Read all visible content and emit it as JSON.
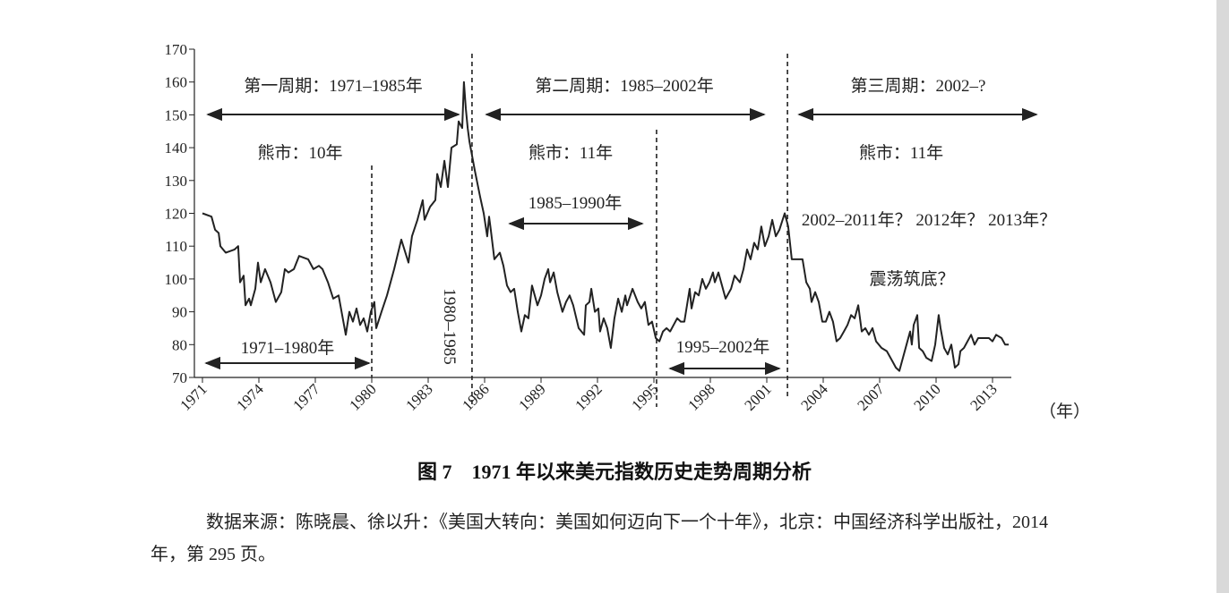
{
  "chart_data": {
    "type": "line",
    "x_label": "（年）",
    "caption": "图 7　1971 年以来美元指数历史走势周期分析",
    "source": "数据来源：陈晓晨、徐以升：《美国大转向：美国如何迈向下一个十年》，北京：中国经济科学出版社，2014 年，第 295 页。",
    "annotations": [
      "第一周期：1971–1985年",
      "第二周期：1985–2002年",
      "第三周期：2002–?",
      "熊市：10年",
      "熊市：11年",
      "熊市：11年",
      "1985–1990年",
      "2002–2011年？ 2012年？ 2013年？",
      "震荡筑底？",
      "1971–1980年",
      "1995–2002年",
      "1980–1985"
    ],
    "reference_lines": [
      1980,
      1985.33,
      1995.14,
      2002.1
    ],
    "xlim": [
      1971,
      2014
    ],
    "xticks": [
      1971,
      1974,
      1977,
      1980,
      1983,
      1986,
      1989,
      1992,
      1995,
      1998,
      2001,
      2004,
      2007,
      2010,
      2013
    ],
    "ylim": [
      70,
      170
    ],
    "yticks": [
      70,
      80,
      90,
      100,
      110,
      120,
      130,
      140,
      150,
      160,
      170
    ],
    "x": [
      1971.0,
      1971.48,
      1971.67,
      1971.86,
      1971.95,
      1972.24,
      1972.71,
      1972.9,
      1973.0,
      1973.19,
      1973.29,
      1973.48,
      1973.57,
      1973.81,
      1973.95,
      1974.1,
      1974.33,
      1974.62,
      1974.9,
      1975.19,
      1975.38,
      1975.57,
      1975.86,
      1976.14,
      1976.62,
      1976.9,
      1977.19,
      1977.38,
      1977.67,
      1977.95,
      1978.24,
      1978.43,
      1978.62,
      1978.81,
      1979.0,
      1979.19,
      1979.38,
      1979.57,
      1979.76,
      1979.95,
      1980.14,
      1980.24,
      1980.52,
      1980.81,
      1981.19,
      1981.57,
      1981.95,
      1982.14,
      1982.43,
      1982.71,
      1982.81,
      1983.1,
      1983.38,
      1983.48,
      1983.67,
      1983.86,
      1984.05,
      1984.24,
      1984.52,
      1984.62,
      1984.81,
      1984.9,
      1985.0,
      1985.1,
      1985.19,
      1985.48,
      1985.76,
      1985.95,
      1986.14,
      1986.24,
      1986.33,
      1986.52,
      1986.81,
      1987.0,
      1987.19,
      1987.38,
      1987.57,
      1987.76,
      1987.95,
      1988.14,
      1988.33,
      1988.52,
      1988.81,
      1989.0,
      1989.19,
      1989.38,
      1989.48,
      1989.67,
      1989.86,
      1990.14,
      1990.33,
      1990.52,
      1990.71,
      1991.0,
      1991.29,
      1991.38,
      1991.57,
      1991.67,
      1991.86,
      1992.05,
      1992.14,
      1992.33,
      1992.52,
      1992.71,
      1992.9,
      1993.1,
      1993.29,
      1993.48,
      1993.57,
      1993.86,
      1994.14,
      1994.33,
      1994.52,
      1994.71,
      1994.9,
      1995.1,
      1995.29,
      1995.48,
      1995.67,
      1995.86,
      1996.05,
      1996.24,
      1996.43,
      1996.62,
      1996.9,
      1997.0,
      1997.19,
      1997.38,
      1997.57,
      1997.76,
      1997.95,
      1998.14,
      1998.24,
      1998.43,
      1998.62,
      1998.81,
      1999.1,
      1999.29,
      1999.57,
      1999.76,
      1999.95,
      2000.14,
      2000.33,
      2000.52,
      2000.71,
      2000.9,
      2001.1,
      2001.29,
      2001.48,
      2001.67,
      2001.95,
      2002.14,
      2002.33,
      2002.62,
      2002.9,
      2003.1,
      2003.29,
      2003.38,
      2003.57,
      2003.76,
      2003.95,
      2004.14,
      2004.33,
      2004.52,
      2004.71,
      2004.9,
      2005.1,
      2005.29,
      2005.48,
      2005.67,
      2005.86,
      2006.05,
      2006.24,
      2006.43,
      2006.62,
      2006.81,
      2007.1,
      2007.38,
      2007.67,
      2007.86,
      2008.05,
      2008.24,
      2008.43,
      2008.62,
      2008.71,
      2008.81,
      2009.0,
      2009.1,
      2009.29,
      2009.48,
      2009.76,
      2009.95,
      2010.14,
      2010.24,
      2010.43,
      2010.62,
      2010.81,
      2011.0,
      2011.19,
      2011.29,
      2011.48,
      2011.67,
      2011.86,
      2012.05,
      2012.24,
      2012.52,
      2012.81,
      2013.0,
      2013.19,
      2013.48,
      2013.67,
      2013.86
    ],
    "series": [
      {
        "name": "美元指数",
        "color": "#222222",
        "values": [
          120,
          119,
          115,
          114,
          110,
          108,
          109,
          110,
          99,
          101,
          92,
          94,
          92,
          97,
          105,
          99,
          103,
          99,
          93,
          96,
          103,
          102,
          103,
          107,
          106,
          103,
          104,
          103,
          99,
          94,
          95,
          89,
          83,
          90,
          87,
          91,
          86,
          88,
          84,
          90,
          93,
          85,
          90,
          95,
          103,
          112,
          105,
          113,
          118,
          124,
          118,
          122,
          124,
          132,
          128,
          136,
          128,
          140,
          141,
          148,
          146,
          160,
          152,
          146,
          142,
          133,
          125,
          120,
          113,
          119,
          115,
          106,
          108,
          104,
          98,
          96,
          97,
          90,
          84,
          89,
          88,
          98,
          92,
          95,
          100,
          103,
          99,
          102,
          96,
          90,
          93,
          95,
          92,
          85,
          83,
          92,
          93,
          97,
          90,
          91,
          84,
          88,
          85,
          79,
          88,
          94,
          90,
          95,
          92,
          97,
          93,
          91,
          93,
          86,
          87,
          82,
          81,
          84,
          85,
          84,
          86,
          88,
          87,
          87,
          97,
          91,
          96,
          95,
          100,
          97,
          99,
          102,
          99,
          102,
          98,
          94,
          97,
          101,
          99,
          103,
          109,
          106,
          111,
          109,
          116,
          110,
          113,
          118,
          113,
          115,
          120,
          116,
          106,
          106,
          106,
          99,
          97,
          93,
          96,
          93,
          87,
          87,
          90,
          87,
          81,
          82,
          84,
          86,
          89,
          88,
          92,
          84,
          85,
          83,
          85,
          81,
          79,
          78,
          75,
          73,
          72,
          76,
          80,
          84,
          80,
          86,
          89,
          79,
          78,
          76,
          75,
          80,
          89,
          85,
          79,
          77,
          80,
          73,
          74,
          78,
          79,
          81,
          83,
          80,
          82,
          82,
          82,
          81,
          83,
          82,
          80,
          80
        ]
      }
    ]
  }
}
